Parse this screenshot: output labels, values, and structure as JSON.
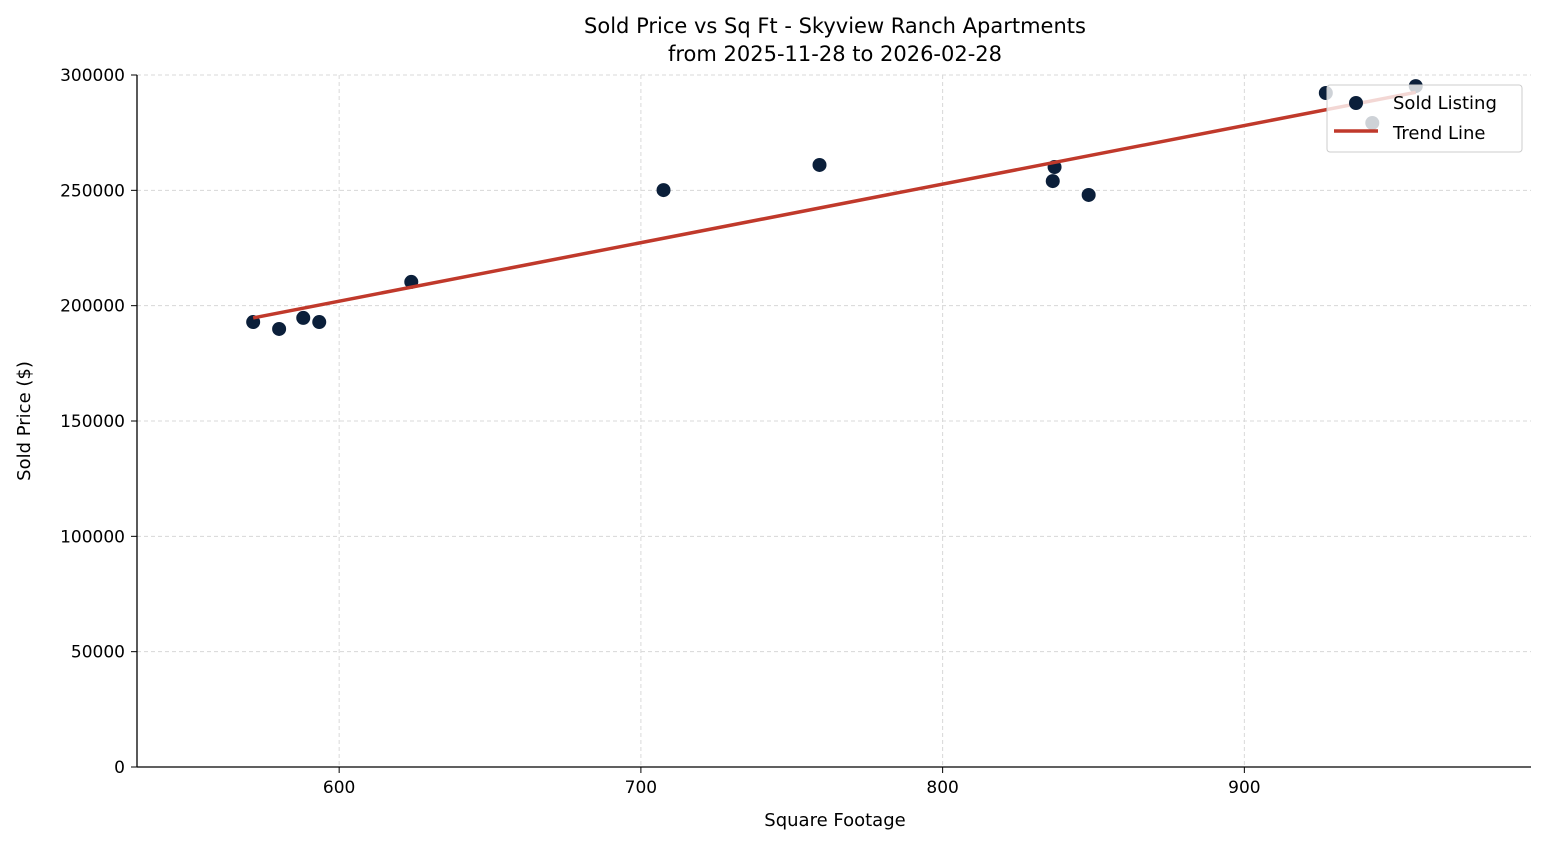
{
  "chart_data": {
    "type": "scatter",
    "title": "Sold Price vs Sq Ft - Skyview Ranch Apartments",
    "subtitle": "from 2025-11-28 to 2026-02-28",
    "xlabel": "Square Footage",
    "ylabel": "Sold Price ($)",
    "xlim": [
      533,
      995
    ],
    "ylim": [
      0,
      300000
    ],
    "xticks": [
      600,
      700,
      800,
      900
    ],
    "yticks": [
      0,
      50000,
      100000,
      150000,
      200000,
      250000,
      300000
    ],
    "grid": true,
    "legend_position": "top-right",
    "series": [
      {
        "name": "Sold Listing",
        "kind": "scatter",
        "color": "#0b1f3a",
        "points": [
          [
            571.5,
            192900
          ],
          [
            580.1,
            189900
          ],
          [
            588.1,
            194700
          ],
          [
            593.4,
            192900
          ],
          [
            623.9,
            210300
          ],
          [
            707.5,
            250100
          ],
          [
            759.2,
            261000
          ],
          [
            836.5,
            254000
          ],
          [
            837.1,
            260100
          ],
          [
            848.4,
            248000
          ],
          [
            927.0,
            292200
          ],
          [
            942.4,
            279200
          ],
          [
            956.8,
            295200
          ]
        ]
      },
      {
        "name": "Trend Line",
        "kind": "line",
        "color": "#c0392b",
        "points": [
          [
            571.5,
            194700
          ],
          [
            956.8,
            292500
          ]
        ]
      }
    ]
  }
}
